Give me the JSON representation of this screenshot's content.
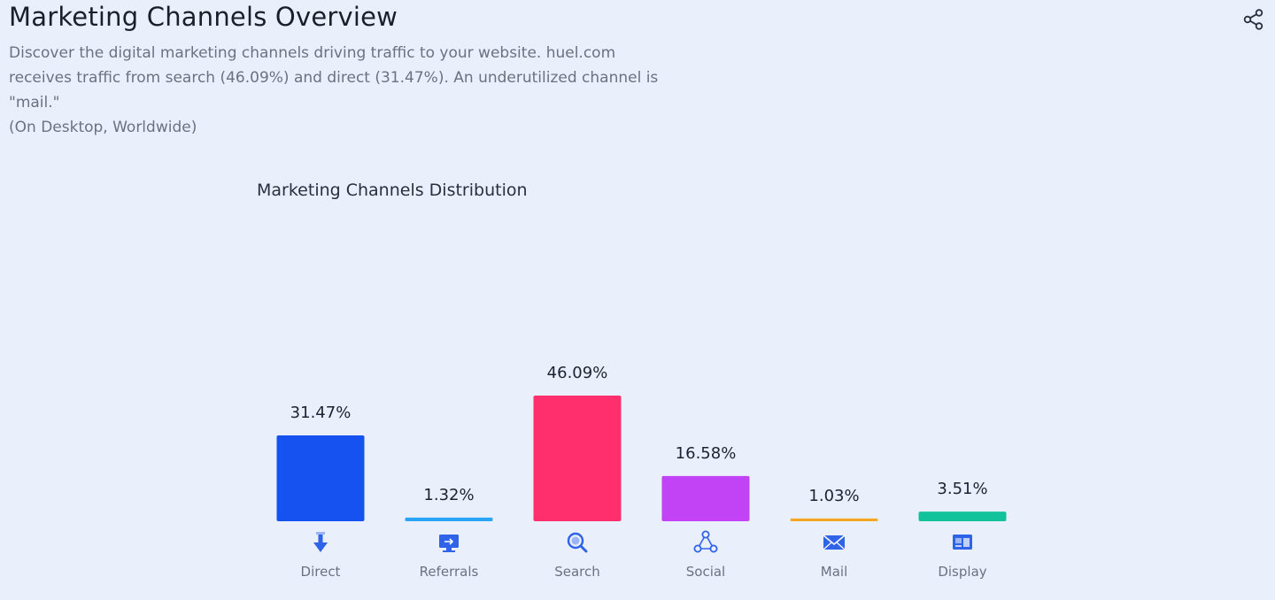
{
  "header": {
    "title": "Marketing Channels Overview",
    "share_icon": "share-icon"
  },
  "description": {
    "text": "Discover the digital marketing channels driving traffic to your website. huel.com receives traffic from search (46.09%) and direct (31.47%). An underutilized channel is \"mail.\"",
    "scope": "(On Desktop, Worldwide)"
  },
  "chart_data": {
    "type": "bar",
    "title": "Marketing Channels Distribution",
    "xlabel": "",
    "ylabel": "",
    "ylim": [
      0,
      46.09
    ],
    "grid": false,
    "categories": [
      "Direct",
      "Referrals",
      "Search",
      "Social",
      "Mail",
      "Display"
    ],
    "values": [
      31.47,
      1.32,
      46.09,
      16.58,
      1.03,
      3.51
    ],
    "value_labels": [
      "31.47%",
      "1.32%",
      "46.09%",
      "16.58%",
      "1.03%",
      "3.51%"
    ],
    "colors": [
      "#1652f0",
      "#2aa5f5",
      "#ff2e6c",
      "#c242f5",
      "#f5a623",
      "#12c29a"
    ],
    "icons": [
      "direct-icon",
      "referrals-icon",
      "search-icon",
      "social-icon",
      "mail-icon",
      "display-icon"
    ]
  }
}
